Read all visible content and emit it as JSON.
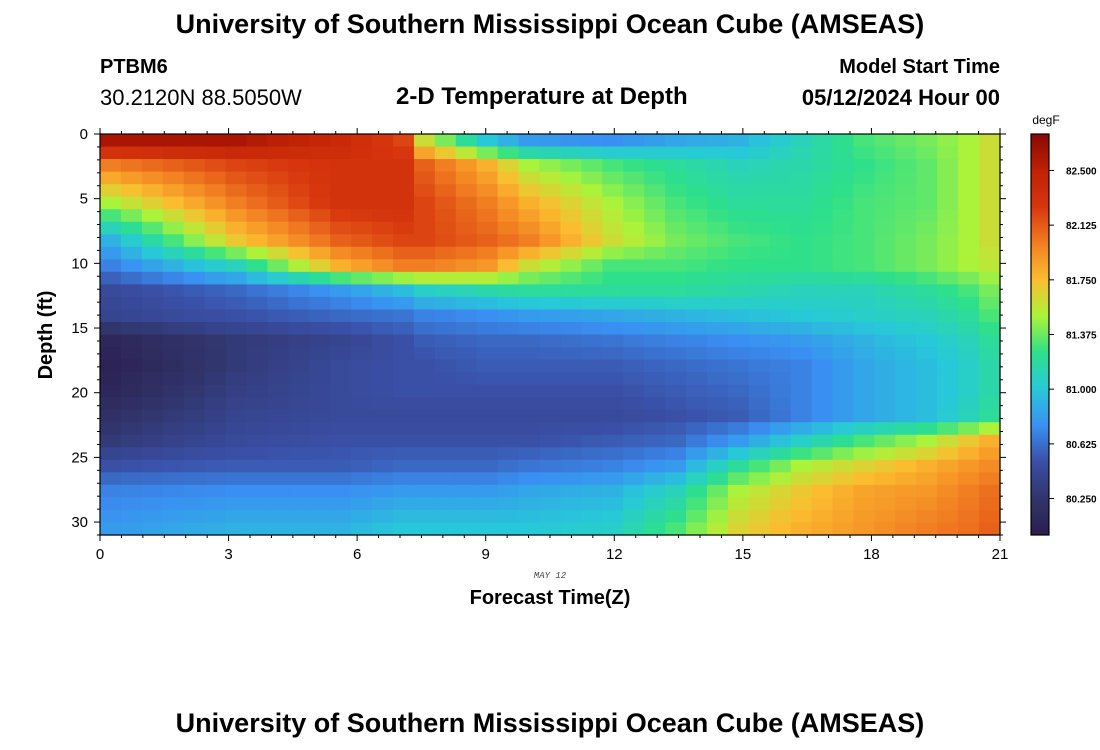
{
  "header": {
    "title": "University of Southern Mississippi Ocean Cube (AMSEAS)",
    "station_id": "PTBM6",
    "station_coords": "30.2120N  88.5050W",
    "subtitle": "2-D Temperature at Depth",
    "model_start_label": "Model Start Time",
    "model_start_value": "05/12/2024 Hour 00"
  },
  "footer": {
    "title": "University of Southern Mississippi Ocean Cube (AMSEAS)"
  },
  "colors": {
    "colormap": [
      "#2c1e4f",
      "#31356c",
      "#3a4fa6",
      "#3a8ff2",
      "#27c9d8",
      "#2ee08a",
      "#aaf33a",
      "#fbbd2f",
      "#f27e22",
      "#d7360e",
      "#bf2104",
      "#870904"
    ]
  },
  "chart_data": {
    "type": "heatmap",
    "title": "2-D Temperature at Depth",
    "xlabel": "Forecast Time(Z)",
    "ylabel": "Depth (ft)",
    "x_date_label": "MAY 12",
    "xlim": [
      0,
      21
    ],
    "ylim": [
      31,
      0
    ],
    "x_ticks": [
      0,
      3,
      6,
      9,
      12,
      15,
      18,
      21
    ],
    "y_ticks": [
      0,
      5,
      10,
      15,
      20,
      25,
      30
    ],
    "colorbar": {
      "unit": "degF",
      "range": [
        80.0,
        82.75
      ],
      "ticks": [
        "82.500",
        "82.125",
        "81.750",
        "81.375",
        "81.000",
        "80.625",
        "80.250"
      ],
      "tick_values": [
        82.5,
        82.125,
        81.75,
        81.375,
        81.0,
        80.625,
        80.25
      ]
    },
    "columns": [
      "0",
      "3",
      "5.5",
      "7",
      "7.5",
      "9",
      "10",
      "12",
      "13.5",
      "15",
      "16.5",
      "18",
      "19.5",
      "20.5",
      "21"
    ],
    "depths": [
      0,
      2,
      5,
      8,
      10,
      12,
      14,
      16,
      18,
      20,
      22,
      24,
      26,
      28,
      31
    ],
    "profiles": [
      [
        82.6,
        82.6,
        82.4,
        82.2,
        81.6,
        81.0,
        80.8,
        80.75,
        80.85,
        80.9,
        81.1,
        81.3,
        81.4,
        81.5,
        81.6
      ],
      [
        82.0,
        82.2,
        82.3,
        82.3,
        82.1,
        81.8,
        81.5,
        81.3,
        81.2,
        81.1,
        81.15,
        81.25,
        81.35,
        81.5,
        81.6
      ],
      [
        81.5,
        82.0,
        82.3,
        82.3,
        82.2,
        82.0,
        81.8,
        81.5,
        81.3,
        81.2,
        81.2,
        81.3,
        81.35,
        81.5,
        81.6
      ],
      [
        80.9,
        81.7,
        82.1,
        82.2,
        82.2,
        82.1,
        82.0,
        81.6,
        81.4,
        81.3,
        81.25,
        81.3,
        81.4,
        81.5,
        81.6
      ],
      [
        80.7,
        81.1,
        81.8,
        82.0,
        82.0,
        81.9,
        81.6,
        81.3,
        81.3,
        81.25,
        81.25,
        81.3,
        81.4,
        81.5,
        81.55
      ],
      [
        80.45,
        80.6,
        80.8,
        80.95,
        81.05,
        81.15,
        81.2,
        81.2,
        81.2,
        81.15,
        81.1,
        81.1,
        81.2,
        81.3,
        81.4
      ],
      [
        80.4,
        80.5,
        80.6,
        80.65,
        80.7,
        80.75,
        80.8,
        80.85,
        80.9,
        80.95,
        81.0,
        81.05,
        81.1,
        81.2,
        81.3
      ],
      [
        80.1,
        80.3,
        80.4,
        80.5,
        80.55,
        80.6,
        80.6,
        80.65,
        80.7,
        80.75,
        80.8,
        80.9,
        81.0,
        81.1,
        81.2
      ],
      [
        80.05,
        80.3,
        80.45,
        80.5,
        80.5,
        80.55,
        80.55,
        80.55,
        80.6,
        80.65,
        80.7,
        80.85,
        80.95,
        81.05,
        81.15
      ],
      [
        80.1,
        80.35,
        80.45,
        80.5,
        80.5,
        80.5,
        80.5,
        80.5,
        80.55,
        80.6,
        80.7,
        80.85,
        80.95,
        81.05,
        81.15
      ],
      [
        80.2,
        80.4,
        80.45,
        80.45,
        80.45,
        80.45,
        80.45,
        80.45,
        80.5,
        80.55,
        80.7,
        80.85,
        80.95,
        81.1,
        81.2
      ],
      [
        80.3,
        80.45,
        80.5,
        80.5,
        80.5,
        80.5,
        80.5,
        80.55,
        80.6,
        80.8,
        81.05,
        81.3,
        81.5,
        81.7,
        81.8
      ],
      [
        80.5,
        80.55,
        80.55,
        80.6,
        80.6,
        80.6,
        80.65,
        80.7,
        80.8,
        81.2,
        81.5,
        81.65,
        81.8,
        81.9,
        81.95
      ],
      [
        80.7,
        80.75,
        80.75,
        80.8,
        80.8,
        80.8,
        80.85,
        80.9,
        81.1,
        81.5,
        81.7,
        81.85,
        81.9,
        82.0,
        82.05
      ],
      [
        80.8,
        80.9,
        80.9,
        81.0,
        81.0,
        81.0,
        81.0,
        81.05,
        81.3,
        81.65,
        81.8,
        81.9,
        82.0,
        82.05,
        82.1
      ]
    ]
  }
}
